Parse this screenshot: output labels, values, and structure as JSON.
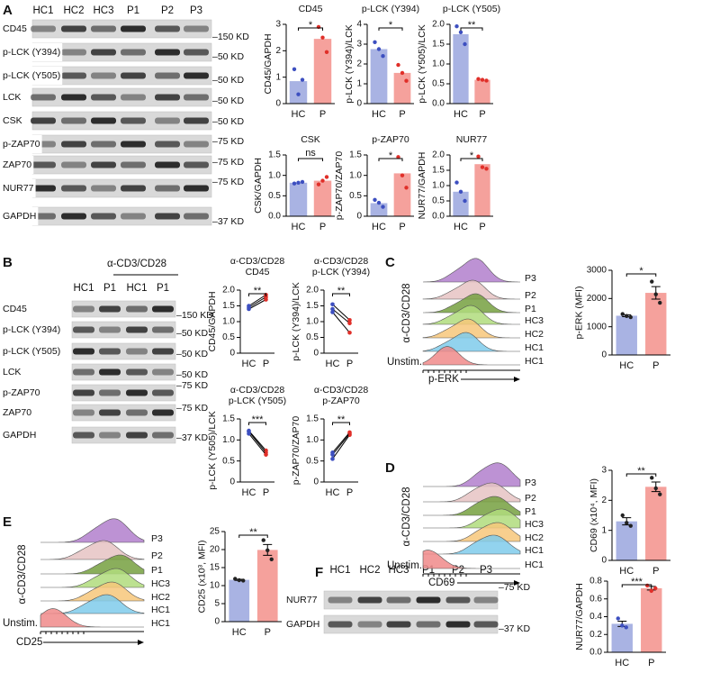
{
  "panel_letters": [
    "A",
    "B",
    "C",
    "D",
    "E",
    "F"
  ],
  "blots": [
    {
      "lanes": [
        "HC1",
        "HC2",
        "HC3",
        "P1",
        "P2",
        "P3"
      ],
      "rows": [
        {
          "label": "CD45",
          "marker": "–150 KD"
        },
        {
          "label": "p-LCK (Y394)",
          "marker": "–50 KD"
        },
        {
          "label": "p-LCK (Y505)",
          "marker": "–50 KD"
        },
        {
          "label": "LCK",
          "marker": "–50 KD"
        },
        {
          "label": "CSK",
          "marker": "–50 KD"
        },
        {
          "label": "p-ZAP70",
          "marker": "–75 KD"
        },
        {
          "label": "ZAP70",
          "marker": "–75 KD"
        },
        {
          "label": "NUR77",
          "marker": "–75 KD"
        },
        {
          "label": "GAPDH",
          "marker": "–37 KD"
        }
      ]
    },
    {
      "treatment": "α-CD3/CD28",
      "lanes": [
        "HC1",
        "P1",
        "HC1",
        "P1"
      ],
      "rows": [
        {
          "label": "CD45",
          "marker": "–150 KD"
        },
        {
          "label": "p-LCK (Y394)",
          "marker": "–50 KD"
        },
        {
          "label": "p-LCK (Y505)",
          "marker": "–50 KD"
        },
        {
          "label": "LCK",
          "marker": "–50 KD"
        },
        {
          "label": "p-ZAP70",
          "marker": "–75 KD"
        },
        {
          "label": "ZAP70",
          "marker": "–75 KD"
        },
        {
          "label": "GAPDH",
          "marker": "–37 KD"
        }
      ]
    },
    {
      "lanes": [
        "HC1",
        "HC2",
        "HC3",
        "P1",
        "P2",
        "P3"
      ],
      "rows": [
        {
          "label": "NUR77",
          "marker": "–75 KD"
        },
        {
          "label": "GAPDH",
          "marker": "–37 KD"
        }
      ]
    }
  ],
  "flow": [
    {
      "y_label": "α-CD3/CD28",
      "x_label": "p-ERK",
      "unstim_label": "Unstim.",
      "tracks": [
        {
          "label": "P3",
          "color": "#b27fcc"
        },
        {
          "label": "P2",
          "color": "#e6c3c3"
        },
        {
          "label": "P1",
          "color": "#76a040"
        },
        {
          "label": "HC3",
          "color": "#b0dc7c"
        },
        {
          "label": "HC2",
          "color": "#f7c77a"
        },
        {
          "label": "HC1",
          "color": "#7fcbeb"
        },
        {
          "label": "HC1",
          "color": "#f08a8a"
        }
      ]
    },
    {
      "y_label": "α-CD3/CD28",
      "x_label": "CD69",
      "unstim_label": "Unstim.",
      "tracks": [
        {
          "label": "P3",
          "color": "#b27fcc"
        },
        {
          "label": "P2",
          "color": "#e6c3c3"
        },
        {
          "label": "P1",
          "color": "#76a040"
        },
        {
          "label": "HC3",
          "color": "#b0dc7c"
        },
        {
          "label": "HC2",
          "color": "#f7c77a"
        },
        {
          "label": "HC1",
          "color": "#7fcbeb"
        },
        {
          "label": "HC1",
          "color": "#f08a8a"
        }
      ]
    },
    {
      "y_label": "α-CD3/CD28",
      "x_label": "CD25",
      "unstim_label": "Unstim.",
      "tracks": [
        {
          "label": "P3",
          "color": "#b27fcc"
        },
        {
          "label": "P2",
          "color": "#e6c3c3"
        },
        {
          "label": "P1",
          "color": "#76a040"
        },
        {
          "label": "HC3",
          "color": "#b0dc7c"
        },
        {
          "label": "HC2",
          "color": "#f7c77a"
        },
        {
          "label": "HC1",
          "color": "#7fcbeb"
        },
        {
          "label": "HC1",
          "color": "#f08a8a"
        }
      ]
    }
  ],
  "chart_data": [
    {
      "type": "bar",
      "title": "CD45",
      "y_label": "CD45/GAPDH",
      "categories": [
        "HC",
        "P"
      ],
      "values": [
        0.85,
        2.45
      ],
      "points": [
        [
          1.3,
          0.35,
          0.9
        ],
        [
          2.9,
          2.5,
          1.95
        ]
      ],
      "significance": "*",
      "ylim": [
        0,
        3
      ],
      "yticks": [
        0,
        1,
        2,
        3
      ],
      "colors": [
        "#a9b3e3",
        "#f5a19c"
      ],
      "point_colors": [
        "#3d4fc0",
        "#e02f29"
      ]
    },
    {
      "type": "bar",
      "title": "p-LCK (Y394)",
      "y_label": "p-LCK (Y394)/LCK",
      "categories": [
        "HC",
        "P"
      ],
      "values": [
        2.75,
        1.55
      ],
      "points": [
        [
          3.1,
          2.75,
          2.4
        ],
        [
          1.95,
          1.55,
          1.15
        ]
      ],
      "significance": "*",
      "ylim": [
        0,
        4
      ],
      "yticks": [
        0,
        1,
        2,
        3,
        4
      ],
      "colors": [
        "#a9b3e3",
        "#f5a19c"
      ],
      "point_colors": [
        "#3d4fc0",
        "#e02f29"
      ]
    },
    {
      "type": "bar",
      "title": "p-LCK (Y505)",
      "y_label": "p-LCK (Y505)/LCK",
      "categories": [
        "HC",
        "P"
      ],
      "values": [
        1.75,
        0.6
      ],
      "points": [
        [
          1.95,
          1.8,
          1.5
        ],
        [
          0.62,
          0.6,
          0.58
        ]
      ],
      "significance": "**",
      "ylim": [
        0,
        2
      ],
      "yticks": [
        {
          "value": 0,
          "label": "0.0"
        },
        0.5,
        {
          "value": 1,
          "label": "1.0"
        },
        1.5,
        {
          "value": 2,
          "label": "2.0"
        }
      ],
      "colors": [
        "#a9b3e3",
        "#f5a19c"
      ],
      "point_colors": [
        "#3d4fc0",
        "#e02f29"
      ]
    },
    {
      "type": "bar",
      "title": "CSK",
      "y_label": "CSK/GAPDH",
      "categories": [
        "HC",
        "P"
      ],
      "values": [
        0.82,
        0.87
      ],
      "points": [
        [
          0.8,
          0.82,
          0.84
        ],
        [
          0.78,
          0.87,
          0.96
        ]
      ],
      "significance": "ns",
      "ylim": [
        0,
        1.5
      ],
      "yticks": [
        {
          "value": 0,
          "label": "0.0"
        },
        0.5,
        {
          "value": 1,
          "label": "1.0"
        },
        1.5
      ],
      "colors": [
        "#a9b3e3",
        "#f5a19c"
      ],
      "point_colors": [
        "#3d4fc0",
        "#e02f29"
      ]
    },
    {
      "type": "bar",
      "title": "p-ZAP70",
      "y_label": "p-ZAP70/ZAP70",
      "categories": [
        "HC",
        "P"
      ],
      "values": [
        0.32,
        1.05
      ],
      "points": [
        [
          0.4,
          0.33,
          0.23
        ],
        [
          1.45,
          1.0,
          0.7
        ]
      ],
      "significance": "*",
      "ylim": [
        0,
        1.5
      ],
      "yticks": [
        0,
        0.5,
        {
          "value": 1,
          "label": "1.0"
        },
        1.5
      ],
      "colors": [
        "#a9b3e3",
        "#f5a19c"
      ],
      "point_colors": [
        "#3d4fc0",
        "#e02f29"
      ]
    },
    {
      "type": "bar",
      "title": "NUR77",
      "y_label": "NUR77/GAPDH",
      "categories": [
        "HC",
        "P"
      ],
      "values": [
        0.8,
        1.7
      ],
      "points": [
        [
          1.1,
          0.8,
          0.5
        ],
        [
          1.95,
          1.6,
          1.55
        ]
      ],
      "significance": "*",
      "ylim": [
        0,
        2
      ],
      "yticks": [
        {
          "value": 0,
          "label": "0.0"
        },
        0.5,
        {
          "value": 1,
          "label": "1.0"
        },
        1.5,
        {
          "value": 2,
          "label": "2.0"
        }
      ],
      "colors": [
        "#a9b3e3",
        "#f5a19c"
      ],
      "point_colors": [
        "#3d4fc0",
        "#e02f29"
      ]
    },
    {
      "type": "paired",
      "title": "α-CD3/CD28",
      "subtitle": "CD45",
      "y_label": "CD45/GAPDH",
      "categories": [
        "HC",
        "P"
      ],
      "series": [
        {
          "values": [
            1.4,
            1.7
          ]
        },
        {
          "values": [
            1.45,
            1.78
          ]
        },
        {
          "values": [
            1.5,
            1.85
          ]
        }
      ],
      "significance": "**",
      "ylim": [
        0,
        2
      ],
      "yticks": [
        0,
        0.5,
        {
          "value": 1,
          "label": "1.0"
        },
        1.5,
        {
          "value": 2,
          "label": "2.0"
        }
      ],
      "point_colors": [
        "#3d4fc0",
        "#e02f29"
      ],
      "line_color": "#000000"
    },
    {
      "type": "paired",
      "title": "α-CD3/CD28",
      "subtitle": "p-LCK (Y394)",
      "y_label": "p-LCK (Y394)/LCK",
      "categories": [
        "HC",
        "P"
      ],
      "series": [
        {
          "values": [
            1.55,
            1.05
          ]
        },
        {
          "values": [
            1.4,
            0.95
          ]
        },
        {
          "values": [
            1.3,
            0.65
          ]
        }
      ],
      "significance": "**",
      "ylim": [
        0,
        2
      ],
      "yticks": [
        0,
        0.5,
        {
          "value": 1,
          "label": "1.0"
        },
        1.5,
        {
          "value": 2,
          "label": "2.0"
        }
      ],
      "point_colors": [
        "#3d4fc0",
        "#e02f29"
      ],
      "line_color": "#000000"
    },
    {
      "type": "paired",
      "title": "α-CD3/CD28",
      "subtitle": "p-LCK (Y505)",
      "y_label": "p-LCK (Y505)/LCK",
      "categories": [
        "HC",
        "P"
      ],
      "series": [
        {
          "values": [
            1.22,
            0.75
          ]
        },
        {
          "values": [
            1.2,
            0.7
          ]
        },
        {
          "values": [
            1.15,
            0.65
          ]
        }
      ],
      "significance": "***",
      "ylim": [
        0,
        1.5
      ],
      "yticks": [
        0,
        0.5,
        {
          "value": 1,
          "label": "1.0"
        },
        1.5
      ],
      "point_colors": [
        "#3d4fc0",
        "#e02f29"
      ],
      "line_color": "#000000"
    },
    {
      "type": "paired",
      "title": "α-CD3/CD28",
      "subtitle": "p-ZAP70",
      "y_label": "p-ZAP70/ZAP70",
      "categories": [
        "HC",
        "P"
      ],
      "series": [
        {
          "values": [
            0.55,
            1.12
          ]
        },
        {
          "values": [
            0.65,
            1.15
          ]
        },
        {
          "values": [
            0.7,
            1.18
          ]
        }
      ],
      "significance": "**",
      "ylim": [
        0,
        1.5
      ],
      "yticks": [
        0,
        0.5,
        {
          "value": 1,
          "label": "1.0"
        },
        1.5
      ],
      "point_colors": [
        "#3d4fc0",
        "#e02f29"
      ],
      "line_color": "#000000"
    },
    {
      "type": "bar",
      "y_label": "p-ERK (MFI)",
      "categories": [
        "HC",
        "P"
      ],
      "values": [
        1390,
        2200
      ],
      "points": [
        [
          1450,
          1380,
          1340
        ],
        [
          2600,
          2150,
          1850
        ]
      ],
      "errors": [
        35,
        220
      ],
      "significance": "*",
      "ylim": [
        0,
        3000
      ],
      "yticks": [
        0,
        1000,
        2000,
        3000
      ],
      "colors": [
        "#a9b3e3",
        "#f5a19c"
      ],
      "point_colors": [
        "#222222",
        "#222222"
      ]
    },
    {
      "type": "bar",
      "y_label": "CD69 (x10⁴, MFI)",
      "categories": [
        "HC",
        "P"
      ],
      "values": [
        1.3,
        2.45
      ],
      "points": [
        [
          1.5,
          1.25,
          1.15
        ],
        [
          2.75,
          2.4,
          2.2
        ]
      ],
      "errors": [
        0.12,
        0.16
      ],
      "significance": "**",
      "ylim": [
        0,
        3
      ],
      "yticks": [
        0,
        1,
        2,
        3
      ],
      "colors": [
        "#a9b3e3",
        "#f5a19c"
      ],
      "point_colors": [
        "#222222",
        "#222222"
      ]
    },
    {
      "type": "bar",
      "y_label": "CD25 (x10³, MFI)",
      "categories": [
        "HC",
        "P"
      ],
      "values": [
        11.6,
        19.9
      ],
      "points": [
        [
          11.9,
          11.5,
          11.4
        ],
        [
          22.6,
          19.8,
          17.3
        ]
      ],
      "errors": [
        0.15,
        1.5
      ],
      "significance": "**",
      "ylim": [
        0,
        25
      ],
      "yticks": [
        0,
        5,
        10,
        15,
        20,
        25
      ],
      "colors": [
        "#a9b3e3",
        "#f5a19c"
      ],
      "point_colors": [
        "#222222",
        "#222222"
      ]
    },
    {
      "type": "bar",
      "y_label": "NUR77/GAPDH",
      "categories": [
        "HC",
        "P"
      ],
      "values": [
        0.32,
        0.72
      ],
      "points": [
        [
          0.38,
          0.3,
          0.28
        ],
        [
          0.75,
          0.69,
          0.72
        ]
      ],
      "errors": [
        0.03,
        0.02
      ],
      "significance": "***",
      "ylim": [
        0,
        0.8
      ],
      "yticks": [
        {
          "value": 0,
          "label": "0.0"
        },
        0.2,
        0.4,
        0.6,
        0.8
      ],
      "colors": [
        "#a9b3e3",
        "#f5a19c"
      ],
      "point_colors": [
        "#3d4fc0",
        "#e02f29"
      ]
    }
  ]
}
